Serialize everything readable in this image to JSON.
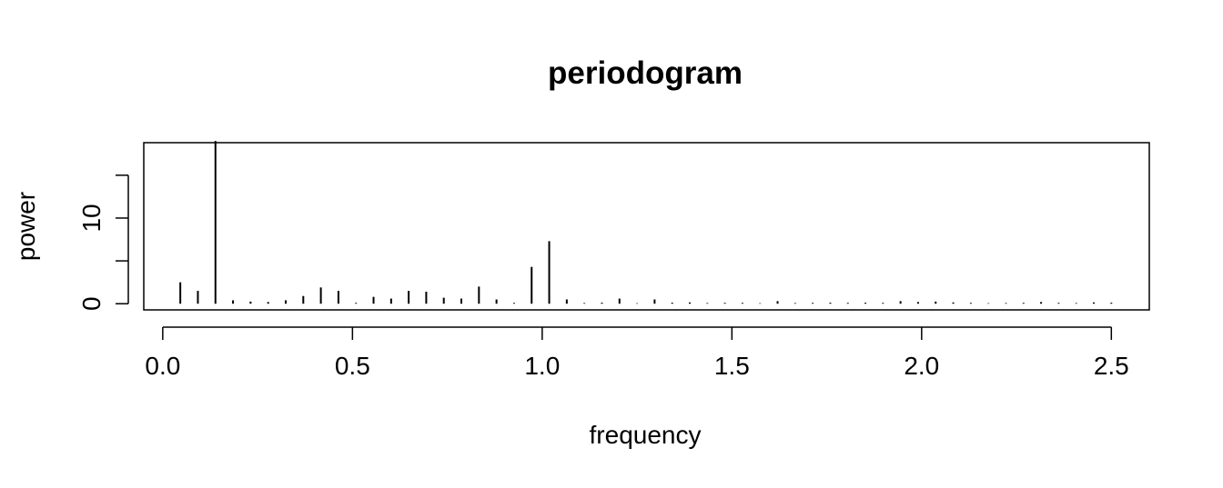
{
  "chart_data": {
    "type": "bar",
    "style": "histogram-spikes",
    "title": "periodogram",
    "xlabel": "frequency",
    "ylabel": "power",
    "xlim": [
      -0.05,
      2.6
    ],
    "ylim": [
      -0.72,
      18.8
    ],
    "x_ticks": [
      {
        "value": 0.0,
        "label": "0.0"
      },
      {
        "value": 0.5,
        "label": "0.5"
      },
      {
        "value": 1.0,
        "label": "1.0"
      },
      {
        "value": 1.5,
        "label": "1.5"
      },
      {
        "value": 2.0,
        "label": "2.0"
      },
      {
        "value": 2.5,
        "label": "2.5"
      }
    ],
    "y_ticks": [
      {
        "value": 0,
        "label": "0"
      },
      {
        "value": 5,
        "label": ""
      },
      {
        "value": 10,
        "label": "10"
      },
      {
        "value": 15,
        "label": ""
      }
    ],
    "grid": false,
    "legend": "none",
    "x": [
      0.0463,
      0.0926,
      0.1389,
      0.1852,
      0.2315,
      0.2778,
      0.3241,
      0.3704,
      0.4167,
      0.463,
      0.5093,
      0.5556,
      0.6019,
      0.6481,
      0.6944,
      0.7407,
      0.787,
      0.8333,
      0.8796,
      0.9259,
      0.9722,
      1.0185,
      1.0648,
      1.1111,
      1.1574,
      1.2037,
      1.25,
      1.2963,
      1.3426,
      1.3889,
      1.4352,
      1.4815,
      1.5278,
      1.5741,
      1.6204,
      1.6667,
      1.713,
      1.7593,
      1.8056,
      1.8519,
      1.8981,
      1.9444,
      1.9907,
      2.037,
      2.0833,
      2.1296,
      2.1759,
      2.2222,
      2.2685,
      2.3148,
      2.3611,
      2.4074,
      2.4537,
      2.5
    ],
    "values": [
      2.5,
      1.5,
      19.0,
      0.4,
      0.25,
      0.2,
      0.4,
      0.9,
      1.9,
      1.5,
      0.1,
      0.8,
      0.6,
      1.5,
      1.4,
      0.7,
      0.6,
      2.0,
      0.5,
      0.1,
      4.3,
      7.3,
      0.5,
      0.08,
      0.12,
      0.6,
      0.06,
      0.5,
      0.12,
      0.15,
      0.08,
      0.1,
      0.1,
      0.06,
      0.3,
      0.08,
      0.1,
      0.12,
      0.1,
      0.12,
      0.1,
      0.3,
      0.2,
      0.25,
      0.15,
      0.1,
      0.06,
      0.08,
      0.1,
      0.2,
      0.1,
      0.08,
      0.15,
      0.12
    ],
    "colors": {
      "line": "#000000",
      "background": "#ffffff"
    }
  }
}
